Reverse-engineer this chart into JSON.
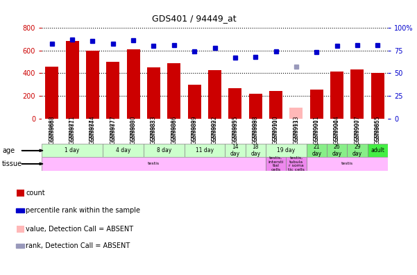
{
  "title": "GDS401 / 94449_at",
  "samples": [
    "GSM9868",
    "GSM9871",
    "GSM9874",
    "GSM9877",
    "GSM9880",
    "GSM9883",
    "GSM9886",
    "GSM9889",
    "GSM9892",
    "GSM9895",
    "GSM9898",
    "GSM9910",
    "GSM9913",
    "GSM9901",
    "GSM9904",
    "GSM9907",
    "GSM9865"
  ],
  "count_values": [
    460,
    680,
    600,
    500,
    610,
    450,
    490,
    300,
    430,
    270,
    220,
    245,
    null,
    255,
    415,
    435,
    400
  ],
  "absent_count": [
    null,
    null,
    null,
    null,
    null,
    null,
    null,
    null,
    null,
    null,
    null,
    null,
    100,
    null,
    null,
    null,
    null
  ],
  "percentile_values": [
    82,
    87,
    85,
    82,
    86,
    80,
    81,
    74,
    78,
    67,
    68,
    74,
    null,
    73,
    80,
    81,
    81
  ],
  "absent_percentile": [
    null,
    null,
    null,
    null,
    null,
    null,
    null,
    null,
    null,
    null,
    null,
    null,
    57,
    null,
    null,
    null,
    null
  ],
  "ylim_left": [
    0,
    800
  ],
  "ylim_right": [
    0,
    100
  ],
  "yticks_left": [
    0,
    200,
    400,
    600,
    800
  ],
  "yticks_right": [
    0,
    25,
    50,
    75,
    100
  ],
  "bar_color": "#cc0000",
  "absent_bar_color": "#ffb8b8",
  "dot_color": "#0000cc",
  "absent_dot_color": "#9999bb",
  "age_groups": [
    {
      "label": "1 day",
      "start": 0,
      "end": 3,
      "color": "#ccffcc"
    },
    {
      "label": "4 day",
      "start": 3,
      "end": 5,
      "color": "#ccffcc"
    },
    {
      "label": "8 day",
      "start": 5,
      "end": 7,
      "color": "#ccffcc"
    },
    {
      "label": "11 day",
      "start": 7,
      "end": 9,
      "color": "#ccffcc"
    },
    {
      "label": "14\nday",
      "start": 9,
      "end": 10,
      "color": "#ccffcc"
    },
    {
      "label": "18\nday",
      "start": 10,
      "end": 11,
      "color": "#ccffcc"
    },
    {
      "label": "19 day",
      "start": 11,
      "end": 13,
      "color": "#ccffcc"
    },
    {
      "label": "21\nday",
      "start": 13,
      "end": 14,
      "color": "#88ee88"
    },
    {
      "label": "26\nday",
      "start": 14,
      "end": 15,
      "color": "#88ee88"
    },
    {
      "label": "29\nday",
      "start": 15,
      "end": 16,
      "color": "#88ee88"
    },
    {
      "label": "adult",
      "start": 16,
      "end": 17,
      "color": "#44ee44"
    }
  ],
  "tissue_groups": [
    {
      "label": "testis",
      "start": 0,
      "end": 11,
      "color": "#ffbbff"
    },
    {
      "label": "testis,\nintersti\ntial\ncells",
      "start": 11,
      "end": 12,
      "color": "#ee88ee"
    },
    {
      "label": "testis,\ntubula\nr soma\ntic cells",
      "start": 12,
      "end": 13,
      "color": "#ee88ee"
    },
    {
      "label": "testis",
      "start": 13,
      "end": 17,
      "color": "#ffbbff"
    }
  ],
  "bg_color": "#ffffff",
  "grid_color": "#000000",
  "left_axis_color": "#cc0000",
  "right_axis_color": "#0000cc"
}
